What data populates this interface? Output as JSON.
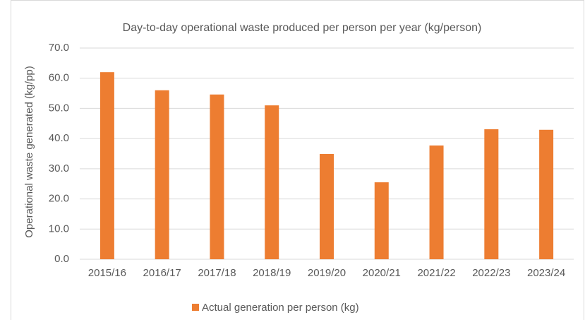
{
  "chart_data": {
    "type": "bar",
    "title": "Day-to-day operational waste produced per person per year (kg/person)",
    "y_label": "Operational waste generated (kg/pp)",
    "categories": [
      "2015/16",
      "2016/17",
      "2017/18",
      "2018/19",
      "2019/20",
      "2020/21",
      "2021/22",
      "2022/23",
      "2023/24"
    ],
    "series": [
      {
        "name": "Actual generation per person (kg)",
        "color": "#ed7d31",
        "values": [
          62.0,
          56.0,
          54.6,
          51.0,
          34.9,
          25.5,
          37.7,
          43.1,
          42.9
        ]
      }
    ],
    "ylim": [
      0,
      70
    ],
    "yticks": [
      {
        "value": 0,
        "label": "0.0"
      },
      {
        "value": 10,
        "label": "10.0"
      },
      {
        "value": 20,
        "label": "20.0"
      },
      {
        "value": 30,
        "label": "30.0"
      },
      {
        "value": 40,
        "label": "40.0"
      },
      {
        "value": 50,
        "label": "50.0"
      },
      {
        "value": 60,
        "label": "60.0"
      },
      {
        "value": 70,
        "label": "70.0"
      }
    ],
    "grid": true,
    "legend": "bottom"
  }
}
